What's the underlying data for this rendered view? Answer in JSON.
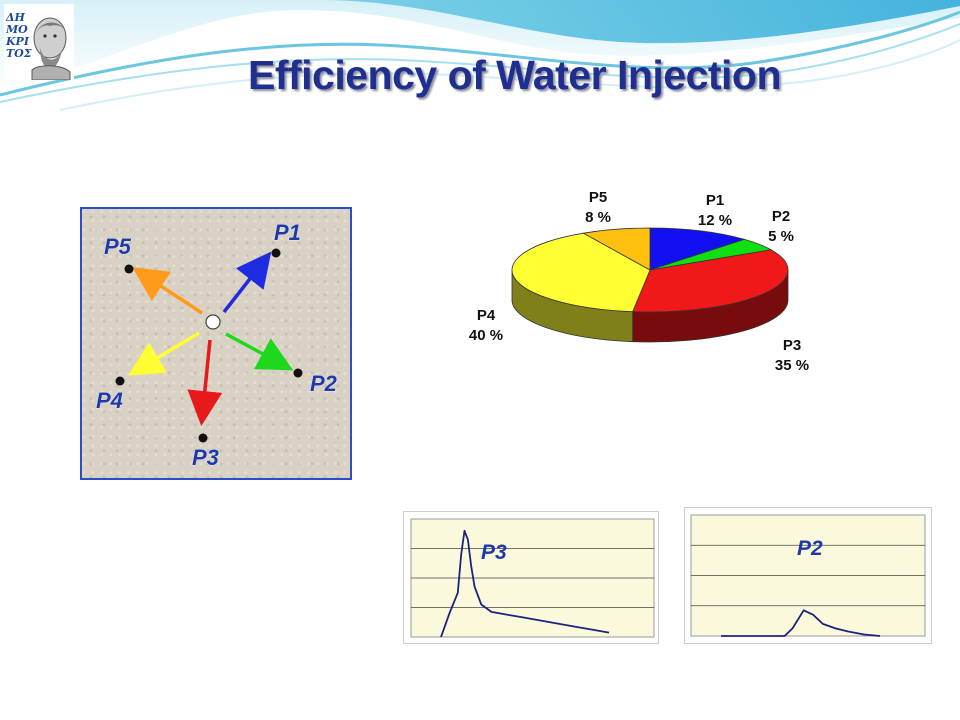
{
  "slide": {
    "title": "Efficiency of Water Injection",
    "logo_text": [
      "ΔΗ",
      "ΜΟ",
      "ΚΡΙ",
      "ΤΟΣ"
    ]
  },
  "well_map": {
    "wells": [
      {
        "id": "p1",
        "label": "P1",
        "arrow_color": "#1e2be0"
      },
      {
        "id": "p2",
        "label": "P2",
        "arrow_color": "#1ed81e"
      },
      {
        "id": "p3",
        "label": "P3",
        "arrow_color": "#e61a1a"
      },
      {
        "id": "p4",
        "label": "P4",
        "arrow_color": "#ffff33"
      },
      {
        "id": "p5",
        "label": "P5",
        "arrow_color": "#ff9a1a"
      }
    ]
  },
  "chart_data": [
    {
      "type": "pie",
      "style": "3d",
      "slices": [
        {
          "label": "P1",
          "value": 12,
          "value_text": "12 %",
          "color": "#1010f0"
        },
        {
          "label": "P2",
          "value": 5,
          "value_text": "5 %",
          "color": "#10e010"
        },
        {
          "label": "P3",
          "value": 35,
          "value_text": "35 %",
          "color": "#f01818"
        },
        {
          "label": "P4",
          "value": 40,
          "value_text": "40 %",
          "color": "#ffff33"
        },
        {
          "label": "P5",
          "value": 8,
          "value_text": "8 %",
          "color": "#ffc010"
        }
      ]
    },
    {
      "type": "line",
      "label": "P3",
      "x": [
        0,
        5,
        10,
        12,
        14,
        16,
        18,
        20,
        24,
        30,
        40,
        50,
        60,
        70,
        80,
        90,
        100
      ],
      "values": [
        0,
        0.8,
        1.5,
        2.8,
        3.6,
        3.3,
        2.4,
        1.7,
        1.1,
        0.85,
        0.75,
        0.65,
        0.55,
        0.45,
        0.35,
        0.25,
        0.15
      ],
      "ylim": [
        0,
        4
      ],
      "line_color": "#1a237e",
      "grid": true
    },
    {
      "type": "line",
      "label": "P2",
      "x": [
        0,
        20,
        40,
        45,
        52,
        58,
        64,
        72,
        80,
        90,
        100
      ],
      "values": [
        0,
        0,
        0,
        0.25,
        0.85,
        0.7,
        0.4,
        0.25,
        0.15,
        0.05,
        0
      ],
      "ylim": [
        0,
        4
      ],
      "line_color": "#1a237e",
      "grid": true
    }
  ]
}
